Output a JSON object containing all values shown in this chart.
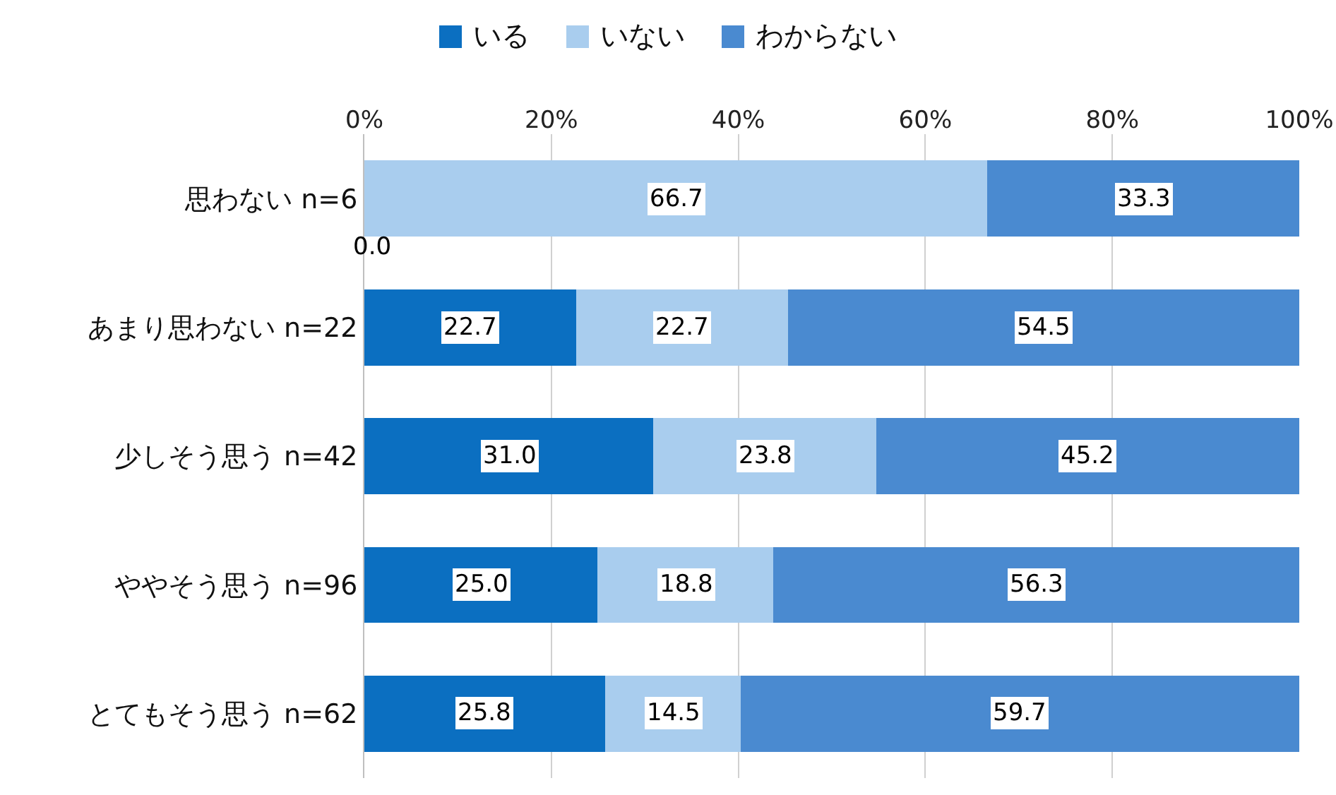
{
  "chart_data": {
    "type": "bar",
    "orientation": "horizontal",
    "stacked": true,
    "categories": [
      "思わない n=6",
      "あまり思わない n=22",
      "少しそう思う n=42",
      "ややそう思う n=96",
      "とてもそう思う n=62"
    ],
    "series": [
      {
        "name": "いる",
        "color": "#0b6fc1",
        "values": [
          0.0,
          22.7,
          31.0,
          25.0,
          25.8
        ],
        "value_labels": [
          "0.0",
          "22.7",
          "31.0",
          "25.0",
          "25.8"
        ]
      },
      {
        "name": "いない",
        "color": "#a9cdee",
        "values": [
          66.7,
          22.7,
          23.8,
          18.8,
          14.5
        ],
        "value_labels": [
          "66.7",
          "22.7",
          "23.8",
          "18.8",
          "14.5"
        ]
      },
      {
        "name": "わからない",
        "color": "#4a8ad0",
        "values": [
          33.3,
          54.5,
          45.2,
          56.3,
          59.7
        ],
        "value_labels": [
          "33.3",
          "54.5",
          "45.2",
          "56.3",
          "59.7"
        ]
      }
    ],
    "xlim": [
      0,
      100
    ],
    "xticks": [
      {
        "value": 0,
        "label": "0%"
      },
      {
        "value": 20,
        "label": "20%"
      },
      {
        "value": 40,
        "label": "40%"
      },
      {
        "value": 60,
        "label": "60%"
      },
      {
        "value": 80,
        "label": "80%"
      },
      {
        "value": 100,
        "label": "100%"
      }
    ],
    "grid": "x",
    "legend": "top"
  }
}
